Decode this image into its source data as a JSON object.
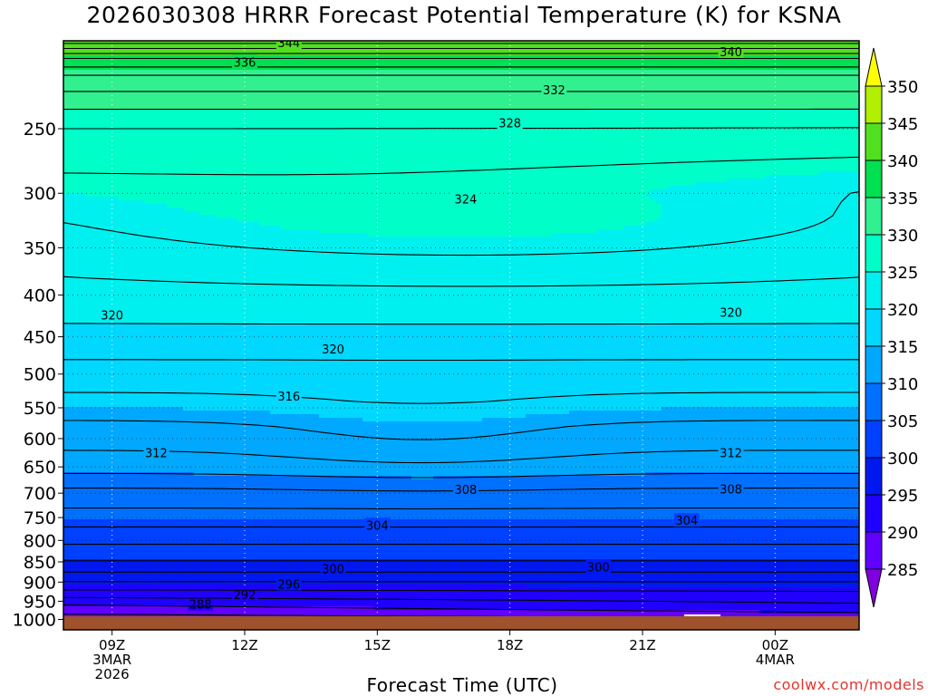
{
  "title": "2026030308 HRRR Forecast Potential Temperature (K) for KSNA",
  "credit": "coolwx.com/models",
  "chart_data": {
    "type": "heatmap",
    "title": "2026030308 HRRR Forecast Potential Temperature (K) for KSNA",
    "xlabel": "Forecast Time (UTC)",
    "ylabel": "",
    "x_range_hours": [
      7.9,
      25.9
    ],
    "x_ticks": [
      {
        "hour": 9,
        "lines": [
          "09Z",
          "3MAR",
          "2026"
        ]
      },
      {
        "hour": 12,
        "lines": [
          "12Z"
        ]
      },
      {
        "hour": 15,
        "lines": [
          "15Z"
        ]
      },
      {
        "hour": 18,
        "lines": [
          "18Z"
        ]
      },
      {
        "hour": 21,
        "lines": [
          "21Z"
        ]
      },
      {
        "hour": 24,
        "lines": [
          "00Z",
          "4MAR"
        ]
      }
    ],
    "y_range_hpa": [
      1030,
      195
    ],
    "y_ticks": [
      250,
      300,
      350,
      400,
      450,
      500,
      550,
      600,
      650,
      700,
      750,
      800,
      850,
      900,
      950,
      1000
    ],
    "grid": true,
    "colorbar": {
      "levels": [
        285,
        290,
        295,
        300,
        305,
        310,
        315,
        320,
        325,
        330,
        335,
        340,
        345,
        350
      ],
      "colors": [
        "#8000e0",
        "#6000ff",
        "#2000ff",
        "#0018f0",
        "#0040ff",
        "#0070ff",
        "#00a8ff",
        "#00d8ff",
        "#00f0f0",
        "#00ffc8",
        "#30f090",
        "#00e050",
        "#50e020",
        "#b0f000",
        "#ffff00"
      ],
      "extend": "both"
    },
    "isentropes": [
      {
        "value": 286,
        "labels": []
      },
      {
        "value": 288,
        "labels": [
          [
            11.0,
            958
          ]
        ]
      },
      {
        "value": 290,
        "labels": []
      },
      {
        "value": 292,
        "labels": [
          [
            12.0,
            932
          ]
        ]
      },
      {
        "value": 294,
        "labels": []
      },
      {
        "value": 296,
        "labels": [
          [
            13.0,
            905
          ]
        ]
      },
      {
        "value": 298,
        "labels": []
      },
      {
        "value": 300,
        "labels": [
          [
            14.0,
            866
          ],
          [
            20.0,
            862
          ]
        ]
      },
      {
        "value": 302,
        "labels": []
      },
      {
        "value": 304,
        "labels": [
          [
            15.0,
            766
          ],
          [
            22.0,
            756
          ]
        ]
      },
      {
        "value": 306,
        "labels": []
      },
      {
        "value": 308,
        "labels": [
          [
            17.0,
            693
          ],
          [
            23.0,
            692
          ]
        ]
      },
      {
        "value": 310,
        "labels": []
      },
      {
        "value": 312,
        "labels": [
          [
            10.0,
            624
          ],
          [
            23.0,
            624
          ]
        ]
      },
      {
        "value": 314,
        "labels": []
      },
      {
        "value": 316,
        "labels": [
          [
            13.0,
            532
          ]
        ]
      },
      {
        "value": 318,
        "labels": []
      },
      {
        "value": 320,
        "labels": [
          [
            9.0,
            423
          ],
          [
            14.0,
            466
          ],
          [
            23.0,
            420
          ]
        ]
      },
      {
        "value": 322,
        "labels": []
      },
      {
        "value": 324,
        "labels": [
          [
            17.0,
            305
          ]
        ]
      },
      {
        "value": 326,
        "labels": []
      },
      {
        "value": 328,
        "labels": [
          [
            18.0,
            246
          ]
        ]
      },
      {
        "value": 330,
        "labels": []
      },
      {
        "value": 332,
        "labels": [
          [
            19.0,
            224
          ]
        ]
      },
      {
        "value": 334,
        "labels": []
      },
      {
        "value": 336,
        "labels": [
          [
            12.0,
            207
          ]
        ]
      },
      {
        "value": 338,
        "labels": []
      },
      {
        "value": 340,
        "labels": [
          [
            23.0,
            201
          ]
        ]
      },
      {
        "value": 342,
        "labels": []
      },
      {
        "value": 344,
        "labels": [
          [
            13.0,
            196
          ]
        ]
      }
    ]
  }
}
